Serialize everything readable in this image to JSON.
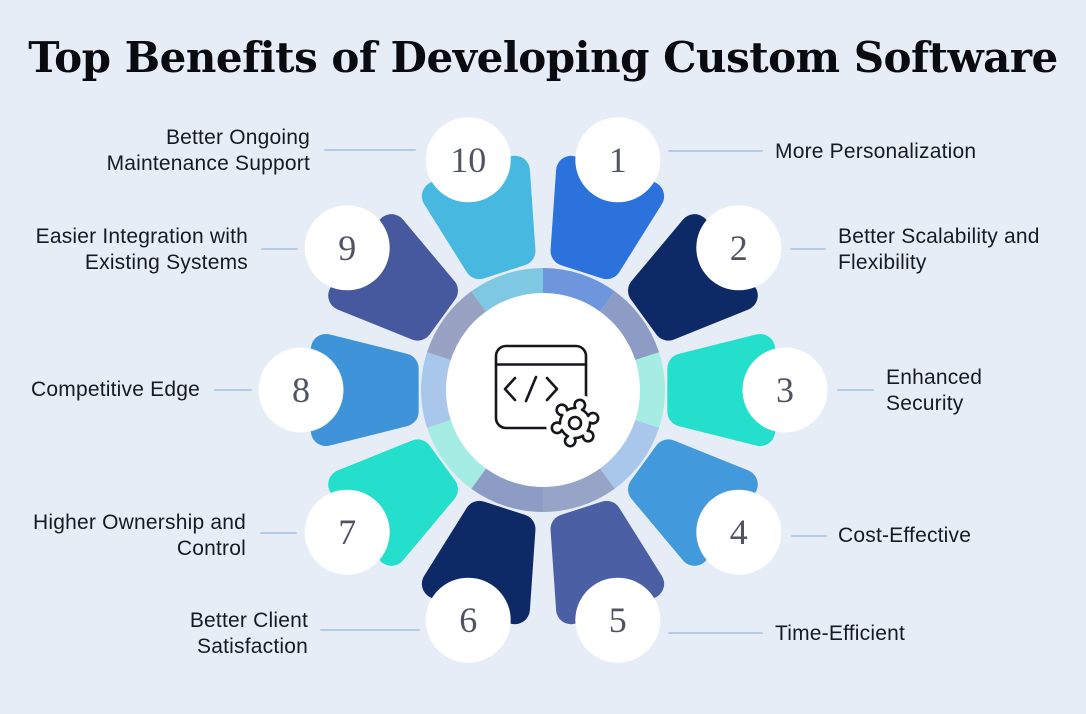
{
  "title": "Top Benefits of Developing Custom Software",
  "palette": {
    "background": "#e7edf7",
    "connector": "#b4cbe8",
    "label_text": "#171a24",
    "title_text": "#0a0b10",
    "number_text": "#515460",
    "circle_fill": "#ffffff",
    "icon_stroke": "#15171d"
  },
  "diagram": {
    "type": "radial-benefits-wheel",
    "center_icon": "code-window-gear-icon",
    "benefits": [
      {
        "number": "1",
        "label": "More Personalization",
        "color": "#2b72dc",
        "tint": "#6e96dd"
      },
      {
        "number": "2",
        "label": "Better Scalability and Flexibility",
        "color": "#0d2a66",
        "tint": "#8d9cc4"
      },
      {
        "number": "3",
        "label": "Enhanced Security",
        "color": "#25dfcd",
        "tint": "#a5ece2"
      },
      {
        "number": "4",
        "label": "Cost-Effective",
        "color": "#4299dc",
        "tint": "#a9c7ea"
      },
      {
        "number": "5",
        "label": "Time-Efficient",
        "color": "#4b60a4",
        "tint": "#98a3c8"
      },
      {
        "number": "6",
        "label": "Better Client Satisfaction",
        "color": "#0d2a66",
        "tint": "#8d9cc4"
      },
      {
        "number": "7",
        "label": "Higher Ownership and Control",
        "color": "#25dfcd",
        "tint": "#a5ece2"
      },
      {
        "number": "8",
        "label": "Competitive Edge",
        "color": "#3f94d9",
        "tint": "#a9c7ea"
      },
      {
        "number": "9",
        "label": "Easier Integration with Existing Systems",
        "color": "#47599e",
        "tint": "#9aa2c4"
      },
      {
        "number": "10",
        "label": "Better Ongoing Maintenance Support",
        "color": "#47b8e0",
        "tint": "#7ec8e4"
      }
    ]
  }
}
